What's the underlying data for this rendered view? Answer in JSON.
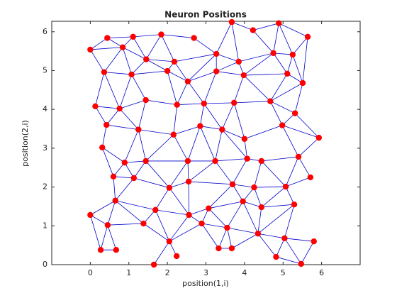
{
  "chart_data": {
    "type": "network",
    "title": "Neuron Positions",
    "x_label": "position(1,i)",
    "y_label": "position(2,i)",
    "xlim": [
      -1,
      7
    ],
    "ylim": [
      0,
      6.27
    ],
    "xticks": [
      0,
      1,
      2,
      3,
      4,
      5,
      6
    ],
    "yticks": [
      0,
      1,
      2,
      3,
      4,
      5,
      6
    ],
    "node_color": "#ff0000",
    "edge_color": "#0000cc",
    "x": [
      0,
      0.44,
      1.11,
      1.84,
      2.69,
      0.84,
      1.45,
      2.18,
      0.36,
      1.07,
      2.0,
      2.53,
      3.27,
      3.27,
      3.67,
      4.22,
      4.89,
      5.64,
      3.85,
      4.75,
      5.25,
      3.98,
      5.11,
      5.51,
      0.13,
      0.76,
      1.44,
      2.25,
      2.95,
      3.73,
      4.67,
      5.31,
      0.42,
      1.25,
      2.16,
      2.85,
      3.42,
      4.0,
      4.98,
      5.93,
      0.31,
      0.89,
      1.44,
      2.53,
      3.24,
      4.07,
      4.44,
      5.4,
      0.6,
      1.13,
      5.71,
      2.05,
      2.55,
      3.69,
      4.25,
      5.07,
      0.65,
      1.69,
      2.56,
      3.07,
      3.96,
      4.44,
      5.29,
      0,
      0.45,
      1.38,
      2.89,
      3.55,
      4.35,
      5.04,
      5.8,
      2.05,
      0.27,
      0.67,
      3.33,
      3.67,
      2.24,
      1.65,
      4.82,
      5.47
    ],
    "y": [
      5.54,
      5.84,
      5.87,
      5.93,
      5.84,
      5.6,
      5.29,
      5.23,
      4.96,
      4.9,
      4.99,
      4.72,
      4.98,
      5.43,
      6.25,
      6.04,
      6.22,
      5.87,
      5.23,
      5.45,
      5.41,
      4.88,
      4.92,
      4.68,
      4.08,
      4.02,
      4.24,
      4.12,
      4.15,
      4.17,
      4.21,
      3.9,
      3.6,
      3.48,
      3.35,
      3.57,
      3.48,
      3.24,
      3.59,
      3.27,
      3.02,
      2.63,
      2.67,
      2.67,
      2.67,
      2.73,
      2.67,
      2.78,
      2.27,
      2.23,
      2.25,
      1.98,
      2.14,
      2.07,
      1.99,
      2.01,
      1.65,
      1.41,
      1.28,
      1.45,
      1.63,
      1.48,
      1.55,
      1.28,
      1.02,
      1.06,
      1.06,
      0.95,
      0.8,
      0.68,
      0.6,
      0.6,
      0.38,
      0.38,
      0.42,
      0.42,
      0.22,
      0,
      0.2,
      0.02
    ],
    "edges": [
      [
        0,
        1
      ],
      [
        0,
        5
      ],
      [
        0,
        8
      ],
      [
        1,
        2
      ],
      [
        1,
        5
      ],
      [
        2,
        3
      ],
      [
        2,
        5
      ],
      [
        2,
        6
      ],
      [
        3,
        4
      ],
      [
        3,
        6
      ],
      [
        3,
        7
      ],
      [
        4,
        13
      ],
      [
        5,
        6
      ],
      [
        5,
        8
      ],
      [
        5,
        9
      ],
      [
        6,
        7
      ],
      [
        6,
        9
      ],
      [
        6,
        10
      ],
      [
        7,
        10
      ],
      [
        7,
        11
      ],
      [
        7,
        13
      ],
      [
        8,
        9
      ],
      [
        8,
        24
      ],
      [
        8,
        25
      ],
      [
        9,
        10
      ],
      [
        9,
        26
      ],
      [
        9,
        25
      ],
      [
        10,
        11
      ],
      [
        10,
        27
      ],
      [
        11,
        12
      ],
      [
        11,
        13
      ],
      [
        11,
        27
      ],
      [
        11,
        28
      ],
      [
        12,
        13
      ],
      [
        12,
        18
      ],
      [
        12,
        21
      ],
      [
        12,
        28
      ],
      [
        13,
        14
      ],
      [
        13,
        18
      ],
      [
        14,
        15
      ],
      [
        14,
        18
      ],
      [
        15,
        16
      ],
      [
        15,
        19
      ],
      [
        16,
        17
      ],
      [
        16,
        19
      ],
      [
        16,
        20
      ],
      [
        17,
        20
      ],
      [
        17,
        23
      ],
      [
        18,
        19
      ],
      [
        18,
        21
      ],
      [
        19,
        20
      ],
      [
        19,
        21
      ],
      [
        19,
        22
      ],
      [
        20,
        22
      ],
      [
        20,
        23
      ],
      [
        21,
        22
      ],
      [
        21,
        29
      ],
      [
        21,
        30
      ],
      [
        22,
        23
      ],
      [
        22,
        30
      ],
      [
        23,
        31
      ],
      [
        23,
        30
      ],
      [
        24,
        25
      ],
      [
        24,
        32
      ],
      [
        25,
        26
      ],
      [
        25,
        32
      ],
      [
        25,
        33
      ],
      [
        26,
        27
      ],
      [
        26,
        33
      ],
      [
        27,
        28
      ],
      [
        27,
        34
      ],
      [
        28,
        29
      ],
      [
        28,
        35
      ],
      [
        28,
        36
      ],
      [
        29,
        30
      ],
      [
        29,
        36
      ],
      [
        29,
        37
      ],
      [
        30,
        31
      ],
      [
        30,
        38
      ],
      [
        31,
        38
      ],
      [
        31,
        39
      ],
      [
        32,
        33
      ],
      [
        32,
        40
      ],
      [
        33,
        34
      ],
      [
        33,
        41
      ],
      [
        33,
        42
      ],
      [
        34,
        35
      ],
      [
        34,
        43
      ],
      [
        34,
        42
      ],
      [
        35,
        36
      ],
      [
        35,
        43
      ],
      [
        35,
        44
      ],
      [
        36,
        37
      ],
      [
        36,
        44
      ],
      [
        36,
        45
      ],
      [
        37,
        45
      ],
      [
        37,
        38
      ],
      [
        38,
        39
      ],
      [
        38,
        47
      ],
      [
        39,
        47
      ],
      [
        40,
        41
      ],
      [
        40,
        48
      ],
      [
        41,
        42
      ],
      [
        41,
        48
      ],
      [
        41,
        49
      ],
      [
        42,
        43
      ],
      [
        42,
        49
      ],
      [
        42,
        51
      ],
      [
        43,
        44
      ],
      [
        43,
        52
      ],
      [
        43,
        51
      ],
      [
        44,
        45
      ],
      [
        44,
        53
      ],
      [
        44,
        52
      ],
      [
        45,
        46
      ],
      [
        45,
        53
      ],
      [
        46,
        47
      ],
      [
        46,
        54
      ],
      [
        46,
        55
      ],
      [
        47,
        50
      ],
      [
        47,
        55
      ],
      [
        48,
        49
      ],
      [
        48,
        56
      ],
      [
        49,
        56
      ],
      [
        49,
        51
      ],
      [
        50,
        55
      ],
      [
        51,
        52
      ],
      [
        51,
        57
      ],
      [
        51,
        58
      ],
      [
        52,
        58
      ],
      [
        52,
        53
      ],
      [
        53,
        54
      ],
      [
        53,
        59
      ],
      [
        53,
        60
      ],
      [
        54,
        55
      ],
      [
        54,
        60
      ],
      [
        54,
        61
      ],
      [
        55,
        62
      ],
      [
        55,
        61
      ],
      [
        56,
        63
      ],
      [
        56,
        64
      ],
      [
        56,
        57
      ],
      [
        56,
        65
      ],
      [
        57,
        58
      ],
      [
        57,
        65
      ],
      [
        57,
        71
      ],
      [
        58,
        59
      ],
      [
        58,
        71
      ],
      [
        58,
        66
      ],
      [
        59,
        60
      ],
      [
        59,
        66
      ],
      [
        59,
        67
      ],
      [
        60,
        61
      ],
      [
        60,
        67
      ],
      [
        60,
        68
      ],
      [
        61,
        62
      ],
      [
        61,
        68
      ],
      [
        62,
        69
      ],
      [
        62,
        68
      ],
      [
        63,
        64
      ],
      [
        63,
        72
      ],
      [
        64,
        72
      ],
      [
        64,
        73
      ],
      [
        64,
        65
      ],
      [
        65,
        71
      ],
      [
        66,
        67
      ],
      [
        66,
        71
      ],
      [
        66,
        74
      ],
      [
        67,
        68
      ],
      [
        67,
        74
      ],
      [
        67,
        75
      ],
      [
        68,
        69
      ],
      [
        68,
        75
      ],
      [
        68,
        78
      ],
      [
        69,
        70
      ],
      [
        69,
        78
      ],
      [
        69,
        79
      ],
      [
        70,
        79
      ],
      [
        71,
        76
      ],
      [
        71,
        77
      ],
      [
        72,
        73
      ],
      [
        74,
        75
      ],
      [
        78,
        79
      ]
    ]
  }
}
